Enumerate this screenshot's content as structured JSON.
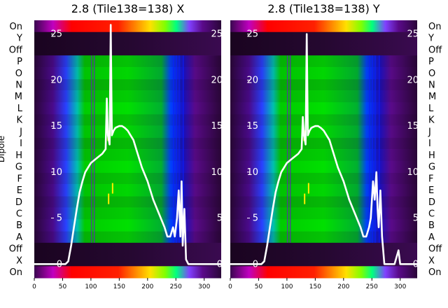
{
  "chart_data": [
    {
      "type": "heatmap",
      "title": "2.8 (Tile138=138) X",
      "xlabel": "",
      "ylabel": "Dipole",
      "xlim": [
        0,
        330
      ],
      "x_ticks": [
        0,
        50,
        100,
        150,
        200,
        250,
        300
      ],
      "row_labels": [
        "On",
        "Y",
        "Off",
        "P",
        "O",
        "N",
        "M",
        "L",
        "K",
        "J",
        "I",
        "H",
        "G",
        "F",
        "E",
        "D",
        "C",
        "B",
        "A",
        "Off",
        "X",
        "On"
      ],
      "overlay_ticks": [
        0,
        5,
        10,
        15,
        20,
        25
      ],
      "overlay_ylim": [
        -1.5,
        26.5
      ],
      "overlay_line": {
        "x": [
          0,
          55,
          60,
          65,
          70,
          75,
          80,
          85,
          90,
          100,
          110,
          120,
          126,
          128,
          130,
          133,
          135,
          137,
          140,
          143,
          146,
          150,
          155,
          160,
          165,
          170,
          175,
          180,
          190,
          200,
          210,
          220,
          230,
          235,
          240,
          245,
          248,
          252,
          255,
          258,
          260,
          262,
          265,
          268,
          272,
          280,
          330
        ],
        "y": [
          0,
          0,
          0.3,
          2,
          4,
          6,
          7.8,
          9,
          10,
          11,
          11.5,
          12,
          12.5,
          18,
          14,
          13,
          26,
          14,
          14.5,
          14.8,
          14.9,
          15,
          15,
          14.8,
          14.5,
          14,
          13.5,
          12.5,
          10.5,
          9,
          7,
          5.5,
          4,
          3,
          3,
          4,
          3,
          5,
          8,
          3,
          9,
          2,
          6,
          0.5,
          0,
          0,
          0
        ]
      }
    },
    {
      "type": "heatmap",
      "title": "2.8 (Tile138=138) Y",
      "xlabel": "",
      "ylabel": "",
      "xlim": [
        0,
        330
      ],
      "x_ticks": [
        0,
        50,
        100,
        150,
        200,
        250,
        300
      ],
      "row_labels": [
        "On",
        "Y",
        "Off",
        "P",
        "O",
        "N",
        "M",
        "L",
        "K",
        "J",
        "I",
        "H",
        "G",
        "F",
        "E",
        "D",
        "C",
        "B",
        "A",
        "Off",
        "X",
        "On"
      ],
      "overlay_ticks": [
        0,
        5,
        10,
        15,
        20,
        25
      ],
      "overlay_ylim": [
        -1.5,
        26.5
      ],
      "overlay_line": {
        "x": [
          0,
          55,
          60,
          65,
          70,
          75,
          80,
          85,
          90,
          100,
          110,
          120,
          126,
          128,
          130,
          133,
          135,
          137,
          140,
          143,
          146,
          150,
          155,
          160,
          165,
          170,
          175,
          180,
          190,
          200,
          210,
          220,
          230,
          235,
          240,
          245,
          248,
          252,
          255,
          258,
          260,
          262,
          265,
          268,
          272,
          290,
          297,
          300,
          330
        ],
        "y": [
          0,
          0,
          0.3,
          2,
          4,
          6,
          7.8,
          9,
          10,
          11,
          11.5,
          12,
          12.5,
          16,
          14,
          13,
          25,
          14,
          14.5,
          14.8,
          14.9,
          15,
          15,
          14.8,
          14.5,
          14,
          13.5,
          12.5,
          10.5,
          9,
          7,
          5.5,
          4,
          3,
          3,
          4,
          5,
          9,
          7,
          10,
          6,
          4,
          8,
          3,
          0,
          0,
          1.5,
          0,
          0
        ]
      }
    }
  ]
}
